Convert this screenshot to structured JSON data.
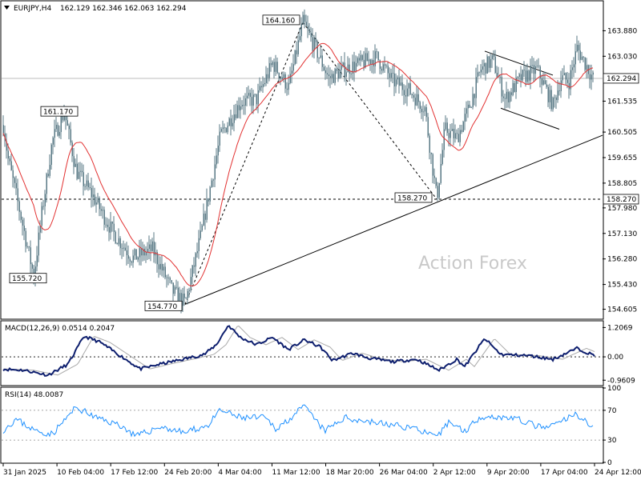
{
  "chart_data": {
    "type": "candlestick",
    "header": {
      "symbol": "EURJPY,H4",
      "ohlc": "162.129 162.346 162.063 162.294"
    },
    "watermark": "Action Forex",
    "x_labels": [
      "31 Jan 2025",
      "10 Feb 04:00",
      "17 Feb 12:00",
      "24 Feb 20:00",
      "4 Mar 04:00",
      "11 Mar 12:00",
      "18 Mar 20:00",
      "26 Mar 04:00",
      "2 Apr 12:00",
      "9 Apr 20:00",
      "17 Apr 04:00",
      "24 Apr 12:00"
    ],
    "price": {
      "ylim": [
        154.3,
        164.85
      ],
      "ticks": [
        "163.880",
        "163.030",
        "161.535",
        "160.505",
        "159.655",
        "158.805",
        "157.980",
        "157.130",
        "156.280",
        "155.430",
        "154.605"
      ],
      "current_price": 162.294,
      "current_label": "162.294",
      "support_level": 158.27,
      "support_label": "158.270",
      "anchors": [
        [
          0,
          161.5
        ],
        [
          10,
          159.6
        ],
        [
          25,
          157.8
        ],
        [
          42,
          155.7
        ],
        [
          52,
          157.8
        ],
        [
          65,
          160.2
        ],
        [
          80,
          161.17
        ],
        [
          95,
          159.2
        ],
        [
          115,
          158.4
        ],
        [
          140,
          157.2
        ],
        [
          165,
          156.3
        ],
        [
          190,
          156.6
        ],
        [
          215,
          155.2
        ],
        [
          231,
          154.8
        ],
        [
          250,
          157.0
        ],
        [
          275,
          160.4
        ],
        [
          300,
          161.5
        ],
        [
          320,
          161.6
        ],
        [
          340,
          162.8
        ],
        [
          360,
          162.0
        ],
        [
          378,
          164.16
        ],
        [
          395,
          163.2
        ],
        [
          410,
          162.3
        ],
        [
          430,
          162.6
        ],
        [
          450,
          162.8
        ],
        [
          470,
          163.0
        ],
        [
          490,
          162.2
        ],
        [
          510,
          161.9
        ],
        [
          530,
          161.3
        ],
        [
          545,
          158.27
        ],
        [
          555,
          160.6
        ],
        [
          570,
          160.3
        ],
        [
          585,
          161.3
        ],
        [
          600,
          162.6
        ],
        [
          615,
          162.9
        ],
        [
          630,
          161.6
        ],
        [
          650,
          162.3
        ],
        [
          670,
          162.6
        ],
        [
          690,
          161.4
        ],
        [
          700,
          162.3
        ],
        [
          710,
          162.2
        ],
        [
          720,
          163.3
        ],
        [
          730,
          162.8
        ],
        [
          740,
          162.294
        ]
      ],
      "annotations": [
        {
          "label": "164.160",
          "x": 378,
          "y": 164.16
        },
        {
          "label": "161.170",
          "x": 97,
          "y": 161.17
        },
        {
          "label": "155.720",
          "x": 60,
          "y": 155.72
        },
        {
          "label": "154.770",
          "x": 231,
          "y": 154.77
        },
        {
          "label": "158.270",
          "x": 545,
          "y": 158.27
        }
      ],
      "trendline": {
        "from": [
          231,
          154.77
        ],
        "to": [
          752,
          160.4
        ]
      },
      "wave_lines": [
        {
          "from": [
            231,
            154.77
          ],
          "to": [
            378,
            164.16
          ]
        },
        {
          "from": [
            378,
            164.16
          ],
          "to": [
            545,
            158.27
          ]
        }
      ],
      "channel": [
        {
          "from": [
            605,
            163.2
          ],
          "to": [
            690,
            162.4
          ]
        },
        {
          "from": [
            625,
            161.3
          ],
          "to": [
            698,
            160.6
          ]
        }
      ]
    },
    "macd": {
      "label": "MACD(12,26,9) 0.0514 0.2047",
      "ylim": [
        -1.15,
        1.45
      ],
      "ticks": [
        "1.2069",
        "0.00",
        "-0.9609"
      ],
      "anchors": [
        [
          0,
          -0.5
        ],
        [
          30,
          -0.55
        ],
        [
          60,
          -0.75
        ],
        [
          85,
          -0.3
        ],
        [
          105,
          0.85
        ],
        [
          125,
          0.6
        ],
        [
          150,
          0.05
        ],
        [
          175,
          -0.5
        ],
        [
          200,
          -0.3
        ],
        [
          235,
          -0.05
        ],
        [
          255,
          0.1
        ],
        [
          270,
          0.5
        ],
        [
          285,
          1.3
        ],
        [
          300,
          0.8
        ],
        [
          320,
          0.5
        ],
        [
          340,
          0.8
        ],
        [
          360,
          0.3
        ],
        [
          380,
          0.7
        ],
        [
          400,
          0.4
        ],
        [
          415,
          -0.15
        ],
        [
          440,
          0.15
        ],
        [
          460,
          -0.05
        ],
        [
          490,
          -0.2
        ],
        [
          520,
          -0.1
        ],
        [
          548,
          -0.55
        ],
        [
          570,
          -0.1
        ],
        [
          580,
          -0.4
        ],
        [
          605,
          0.75
        ],
        [
          625,
          0.1
        ],
        [
          660,
          0.05
        ],
        [
          690,
          -0.1
        ],
        [
          720,
          0.35
        ],
        [
          742,
          0.05
        ]
      ]
    },
    "rsi": {
      "label": "RSI(14) 48.0087",
      "ylim": [
        0,
        100
      ],
      "ticks": [
        "100",
        "70",
        "30",
        "0"
      ],
      "levels": [
        70,
        30
      ],
      "anchors": [
        [
          0,
          40
        ],
        [
          20,
          58
        ],
        [
          45,
          42
        ],
        [
          65,
          38
        ],
        [
          95,
          74
        ],
        [
          120,
          60
        ],
        [
          150,
          50
        ],
        [
          170,
          35
        ],
        [
          200,
          48
        ],
        [
          230,
          40
        ],
        [
          260,
          50
        ],
        [
          275,
          70
        ],
        [
          300,
          60
        ],
        [
          330,
          60
        ],
        [
          345,
          45
        ],
        [
          380,
          75
        ],
        [
          405,
          42
        ],
        [
          430,
          60
        ],
        [
          460,
          55
        ],
        [
          490,
          50
        ],
        [
          520,
          46
        ],
        [
          545,
          32
        ],
        [
          560,
          55
        ],
        [
          580,
          42
        ],
        [
          600,
          62
        ],
        [
          640,
          60
        ],
        [
          680,
          45
        ],
        [
          720,
          65
        ],
        [
          740,
          48
        ]
      ]
    }
  }
}
